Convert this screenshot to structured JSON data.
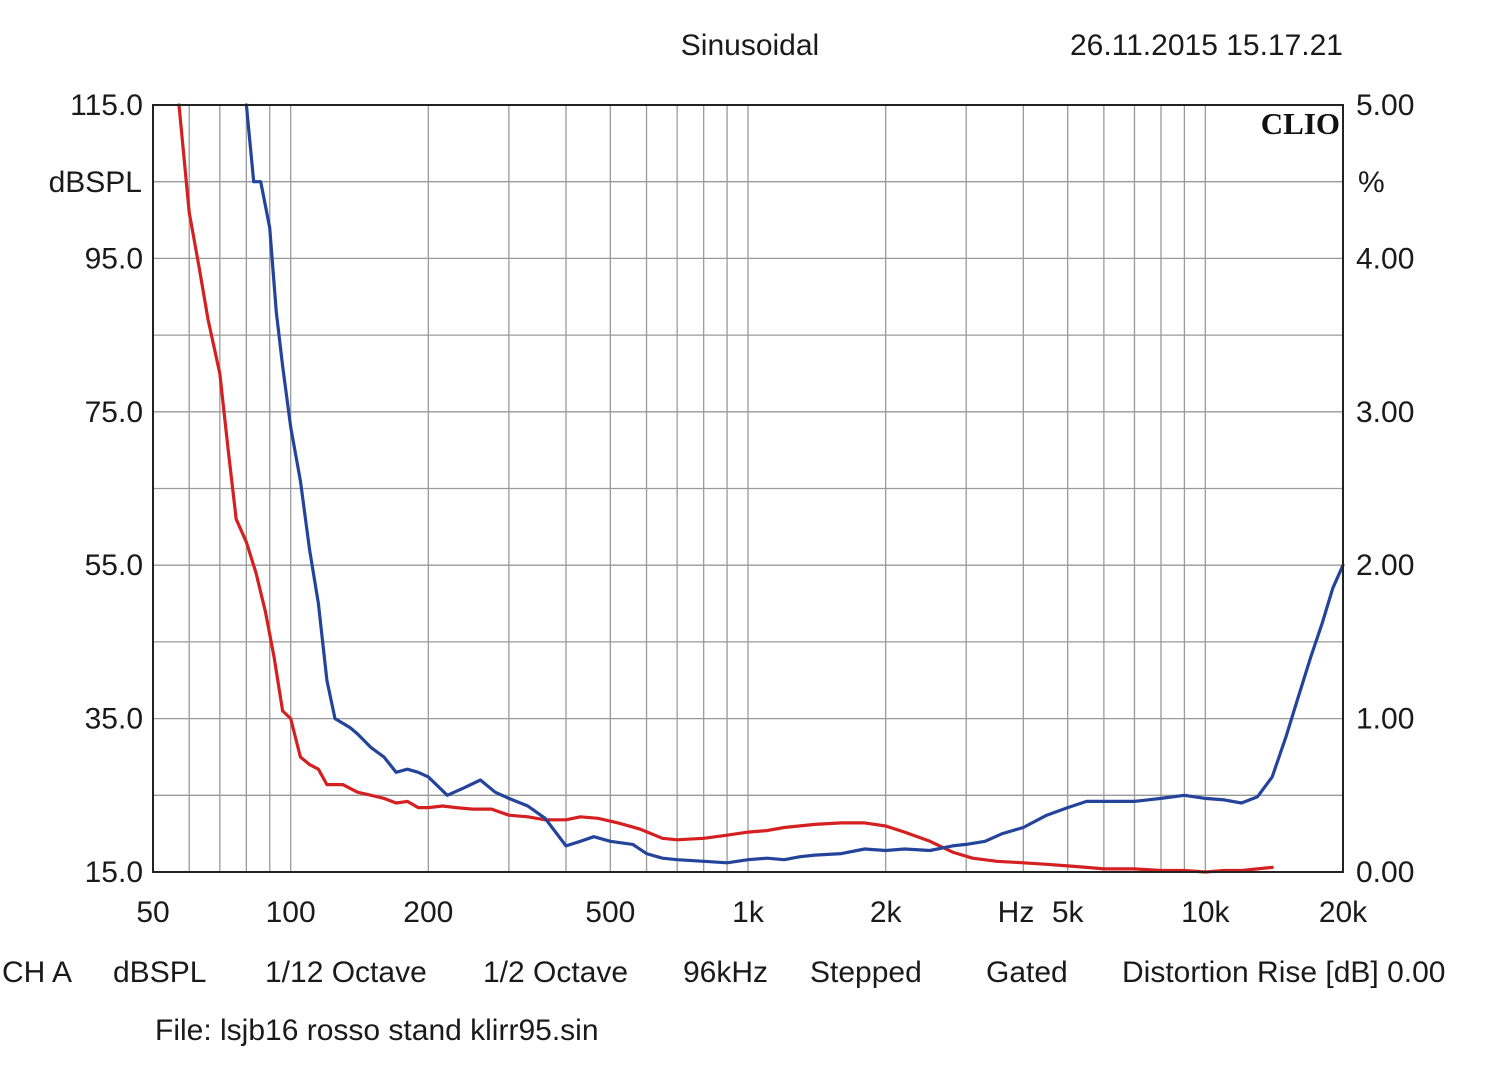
{
  "header": {
    "mode": "Sinusoidal",
    "datetime": "26.11.2015 15.17.21"
  },
  "logo": "CLIO",
  "footer": {
    "settings": [
      "CH A",
      "dBSPL",
      "1/12 Octave",
      "1/2 Octave",
      "96kHz",
      "Stepped",
      "Gated",
      "Distortion Rise [dB] 0.00"
    ],
    "file": "File: lsjb16 rosso stand klirr95.sin"
  },
  "chart_data": {
    "type": "line",
    "x_scale": "log",
    "xlim": [
      50,
      20000
    ],
    "x_ticks": [
      {
        "value": 50,
        "label": "50"
      },
      {
        "value": 100,
        "label": "100"
      },
      {
        "value": 200,
        "label": "200"
      },
      {
        "value": 500,
        "label": "500"
      },
      {
        "value": 1000,
        "label": "1k"
      },
      {
        "value": 2000,
        "label": "2k"
      },
      {
        "value": 5000,
        "label": "5k"
      },
      {
        "value": 10000,
        "label": "10k"
      },
      {
        "value": 20000,
        "label": "20k"
      }
    ],
    "x_unit_label": "Hz",
    "y_left": {
      "unit": "dBSPL",
      "range": [
        15,
        115
      ],
      "ticks": [
        "115.0",
        "95.0",
        "75.0",
        "55.0",
        "35.0",
        "15.0"
      ]
    },
    "y_right": {
      "unit": "%",
      "range": [
        0,
        5
      ],
      "ticks": [
        "5.00",
        "4.00",
        "3.00",
        "2.00",
        "1.00",
        "0.00"
      ]
    },
    "grid": true,
    "series": [
      {
        "color": "#d42020",
        "axis": "right",
        "x": [
          57,
          60,
          63,
          66,
          70,
          73,
          76,
          80,
          84,
          88,
          92,
          96,
          100,
          105,
          110,
          115,
          120,
          130,
          140,
          150,
          160,
          170,
          180,
          190,
          200,
          215,
          230,
          250,
          275,
          300,
          330,
          360,
          400,
          430,
          470,
          520,
          580,
          650,
          700,
          800,
          900,
          1000,
          1100,
          1200,
          1400,
          1600,
          1800,
          2000,
          2200,
          2500,
          2800,
          3100,
          3500,
          4000,
          4500,
          5000,
          5500,
          6000,
          7000,
          8000,
          9000,
          10000,
          11000,
          12000,
          13000,
          14000
        ],
        "y": [
          5.0,
          4.3,
          3.95,
          3.6,
          3.25,
          2.75,
          2.3,
          2.15,
          1.95,
          1.7,
          1.4,
          1.05,
          1.0,
          0.75,
          0.7,
          0.67,
          0.57,
          0.57,
          0.52,
          0.5,
          0.48,
          0.45,
          0.46,
          0.42,
          0.42,
          0.43,
          0.42,
          0.41,
          0.41,
          0.37,
          0.36,
          0.34,
          0.34,
          0.36,
          0.35,
          0.32,
          0.28,
          0.22,
          0.21,
          0.22,
          0.24,
          0.26,
          0.27,
          0.29,
          0.31,
          0.32,
          0.32,
          0.3,
          0.26,
          0.2,
          0.13,
          0.09,
          0.07,
          0.06,
          0.05,
          0.04,
          0.03,
          0.02,
          0.02,
          0.01,
          0.01,
          0.0,
          0.01,
          0.01,
          0.02,
          0.03
        ]
      },
      {
        "color": "#23449a",
        "axis": "right",
        "x": [
          80,
          83,
          86,
          90,
          93,
          96,
          100,
          105,
          110,
          115,
          120,
          125,
          130,
          135,
          140,
          150,
          160,
          170,
          180,
          190,
          200,
          220,
          240,
          260,
          280,
          300,
          330,
          360,
          400,
          430,
          460,
          500,
          560,
          600,
          650,
          700,
          800,
          900,
          1000,
          1100,
          1200,
          1300,
          1400,
          1600,
          1800,
          2000,
          2200,
          2500,
          2800,
          3000,
          3300,
          3600,
          4000,
          4500,
          5000,
          5500,
          6000,
          7000,
          8000,
          9000,
          10000,
          11000,
          12000,
          12500,
          13000,
          14000,
          15000,
          16000,
          17000,
          18000,
          19000,
          20000
        ],
        "y": [
          5.0,
          4.5,
          4.5,
          4.2,
          3.65,
          3.3,
          2.9,
          2.55,
          2.1,
          1.75,
          1.25,
          1.0,
          0.97,
          0.94,
          0.9,
          0.81,
          0.75,
          0.65,
          0.67,
          0.65,
          0.62,
          0.5,
          0.55,
          0.6,
          0.52,
          0.48,
          0.43,
          0.35,
          0.17,
          0.2,
          0.23,
          0.2,
          0.18,
          0.12,
          0.09,
          0.08,
          0.07,
          0.06,
          0.08,
          0.09,
          0.08,
          0.1,
          0.11,
          0.12,
          0.15,
          0.14,
          0.15,
          0.14,
          0.17,
          0.18,
          0.2,
          0.25,
          0.29,
          0.37,
          0.42,
          0.46,
          0.46,
          0.46,
          0.48,
          0.5,
          0.48,
          0.47,
          0.45,
          0.47,
          0.49,
          0.62,
          0.88,
          1.15,
          1.4,
          1.62,
          1.85,
          2.0
        ]
      }
    ]
  }
}
